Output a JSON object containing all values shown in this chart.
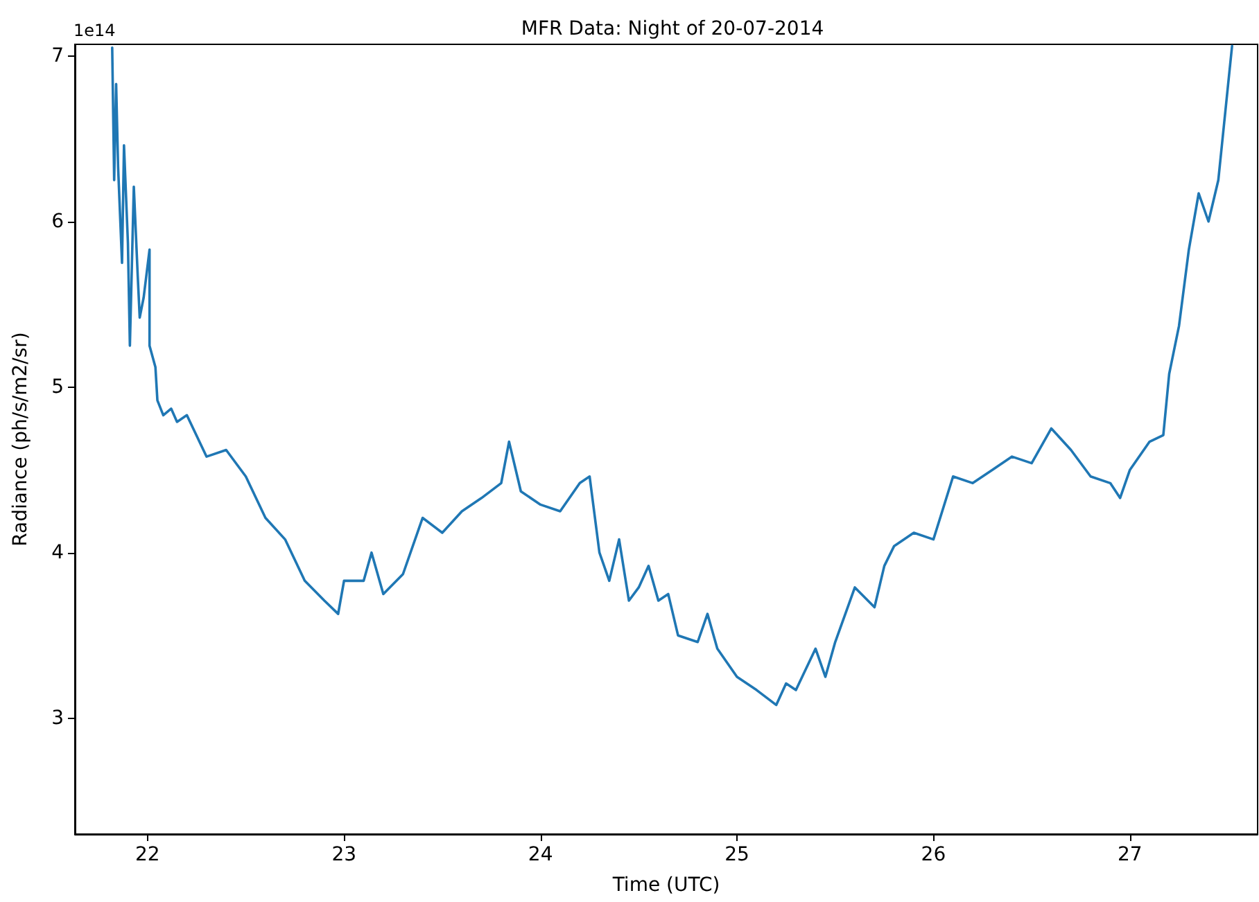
{
  "chart_data": {
    "type": "line",
    "title": "MFR Data: Night of 20-07-2014",
    "xlabel": "Time (UTC)",
    "ylabel": "Radiance (ph/s/m2/sr)",
    "annotations": [
      "1e14"
    ],
    "x": [
      21.82,
      21.83,
      21.84,
      21.85,
      21.87,
      21.88,
      21.9,
      21.91,
      21.93,
      21.95,
      21.96,
      21.98,
      22.01,
      22.01,
      22.04,
      22.05,
      22.08,
      22.12,
      22.15,
      22.2,
      22.3,
      22.4,
      22.5,
      22.6,
      22.7,
      22.8,
      22.9,
      22.97,
      23.0,
      23.1,
      23.14,
      23.2,
      23.3,
      23.4,
      23.5,
      23.6,
      23.7,
      23.8,
      23.84,
      23.9,
      24.0,
      24.1,
      24.2,
      24.25,
      24.3,
      24.35,
      24.4,
      24.45,
      24.5,
      24.55,
      24.6,
      24.65,
      24.7,
      24.8,
      24.85,
      24.9,
      25.0,
      25.1,
      25.2,
      25.25,
      25.3,
      25.4,
      25.45,
      25.5,
      25.6,
      25.7,
      25.75,
      25.8,
      25.9,
      26.0,
      26.1,
      26.2,
      26.3,
      26.4,
      26.5,
      26.6,
      26.7,
      26.8,
      26.9,
      26.95,
      27.0,
      27.1,
      27.17,
      27.2,
      27.25,
      27.3,
      27.35,
      27.4,
      27.45,
      27.5,
      27.52
    ],
    "series": [
      {
        "color": "#1f77b4",
        "values": [
          7.05,
          6.25,
          6.83,
          6.33,
          5.75,
          6.46,
          5.87,
          5.25,
          6.21,
          5.67,
          5.42,
          5.54,
          5.83,
          5.25,
          5.12,
          4.92,
          4.83,
          4.87,
          4.79,
          4.83,
          4.58,
          4.62,
          4.46,
          4.21,
          4.08,
          3.83,
          3.71,
          3.63,
          3.83,
          3.83,
          4.0,
          3.75,
          3.87,
          4.21,
          4.12,
          4.25,
          4.33,
          4.42,
          4.67,
          4.37,
          4.29,
          4.25,
          4.42,
          4.46,
          4.0,
          3.83,
          4.08,
          3.71,
          3.79,
          3.92,
          3.71,
          3.75,
          3.5,
          3.46,
          3.63,
          3.42,
          3.25,
          3.17,
          3.08,
          3.21,
          3.17,
          3.42,
          3.25,
          3.46,
          3.79,
          3.67,
          3.92,
          4.04,
          4.12,
          4.08,
          4.46,
          4.42,
          4.5,
          4.58,
          4.54,
          4.75,
          4.62,
          4.46,
          4.42,
          4.33,
          4.5,
          4.67,
          4.71,
          5.08,
          5.37,
          5.83,
          6.17,
          6.0,
          6.25,
          6.83,
          7.06
        ]
      }
    ],
    "xlim": [
      21.63,
      27.65
    ],
    "ylim": [
      2.3,
      7.07
    ],
    "xticks": [
      22,
      23,
      24,
      25,
      26,
      27
    ],
    "yticks": [
      3,
      4,
      5,
      6,
      7
    ],
    "grid": false,
    "marker": "none",
    "line_style": "solid"
  }
}
